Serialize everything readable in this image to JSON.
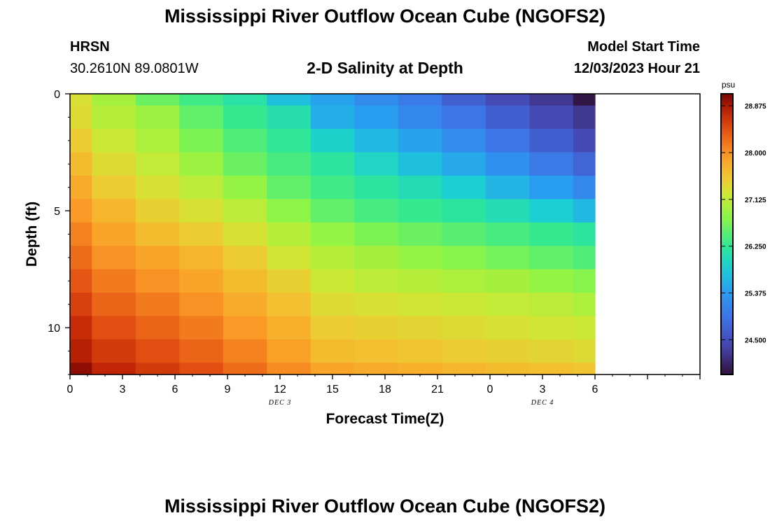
{
  "page": {
    "title_top": "Mississippi River Outflow Ocean Cube (NGOFS2)",
    "title_bottom": "Mississippi River Outflow Ocean Cube (NGOFS2)",
    "station_name": "HRSN",
    "station_coords": "30.2610N  89.0801W",
    "plot_title": "2-D Salinity at Depth",
    "model_start_label": "Model Start Time",
    "model_start_value": "12/03/2023 Hour 21"
  },
  "chart_data": {
    "type": "heatmap",
    "title": "2-D Salinity at Depth",
    "xlabel": "Forecast Time(Z)",
    "ylabel": "Depth (ft)",
    "x_range": [
      0,
      36
    ],
    "y_range": [
      0,
      12
    ],
    "y_inverted": true,
    "x_ticks": [
      0,
      3,
      6,
      9,
      12,
      15,
      18,
      21,
      24,
      27,
      30,
      33,
      36
    ],
    "x_tick_labels": [
      "0",
      "3",
      "6",
      "9",
      "12",
      "15",
      "18",
      "21",
      "0",
      "3",
      "6"
    ],
    "x_tick_labels_at": [
      0,
      3,
      6,
      9,
      12,
      15,
      18,
      21,
      24,
      27,
      30
    ],
    "y_ticks": [
      0,
      5,
      10
    ],
    "y_tick_labels": [
      "0",
      "5",
      "10"
    ],
    "date_labels": [
      {
        "text": "DEC 3",
        "x": 12
      },
      {
        "text": "DEC 4",
        "x": 27
      }
    ],
    "colorbar": {
      "units": "psu",
      "min": 23.85,
      "max": 29.1,
      "ticks": [
        28.875,
        28.0,
        27.125,
        26.25,
        25.375,
        24.5
      ],
      "tick_labels": [
        "28.875",
        "28.000",
        "27.125",
        "26.250",
        "25.375",
        "24.500"
      ]
    },
    "x_edges": [
      0,
      1.25,
      3.75,
      6.25,
      8.75,
      11.25,
      13.75,
      16.25,
      18.75,
      21.25,
      23.75,
      26.25,
      28.75,
      30
    ],
    "y_edges": [
      0,
      0.5,
      1.5,
      2.5,
      3.5,
      4.5,
      5.5,
      6.5,
      7.5,
      8.5,
      9.5,
      10.5,
      11.5,
      12
    ],
    "values": [
      [
        27.3,
        26.95,
        26.6,
        26.35,
        26.15,
        25.7,
        25.45,
        25.2,
        25.0,
        24.7,
        24.45,
        24.25,
        23.9
      ],
      [
        27.35,
        27.05,
        26.9,
        26.55,
        26.3,
        26.1,
        25.55,
        25.4,
        25.15,
        24.95,
        24.7,
        24.45,
        24.25
      ],
      [
        27.5,
        27.2,
        27.0,
        26.7,
        26.45,
        26.25,
        25.9,
        25.65,
        25.45,
        25.2,
        24.95,
        24.7,
        24.45
      ],
      [
        27.65,
        27.35,
        27.15,
        26.9,
        26.6,
        26.4,
        26.2,
        25.95,
        25.7,
        25.5,
        25.25,
        25.0,
        24.75
      ],
      [
        27.8,
        27.5,
        27.3,
        27.1,
        26.85,
        26.55,
        26.35,
        26.2,
        26.05,
        25.85,
        25.6,
        25.4,
        25.15
      ],
      [
        27.95,
        27.7,
        27.45,
        27.3,
        27.1,
        26.8,
        26.55,
        26.4,
        26.3,
        26.2,
        26.05,
        25.85,
        25.65
      ],
      [
        28.1,
        27.85,
        27.65,
        27.5,
        27.3,
        27.05,
        26.85,
        26.7,
        26.6,
        26.5,
        26.4,
        26.3,
        26.2
      ],
      [
        28.25,
        28.0,
        27.85,
        27.7,
        27.5,
        27.25,
        27.05,
        26.95,
        26.85,
        26.75,
        26.65,
        26.55,
        26.45
      ],
      [
        28.4,
        28.15,
        28.0,
        27.85,
        27.65,
        27.45,
        27.2,
        27.1,
        27.05,
        27.0,
        26.95,
        26.85,
        26.75
      ],
      [
        28.55,
        28.3,
        28.15,
        28.0,
        27.8,
        27.6,
        27.35,
        27.3,
        27.25,
        27.2,
        27.15,
        27.1,
        27.0
      ],
      [
        28.7,
        28.45,
        28.3,
        28.15,
        27.95,
        27.75,
        27.5,
        27.45,
        27.4,
        27.35,
        27.3,
        27.25,
        27.2
      ],
      [
        28.8,
        28.6,
        28.45,
        28.3,
        28.1,
        27.9,
        27.65,
        27.6,
        27.55,
        27.5,
        27.45,
        27.4,
        27.35
      ],
      [
        29.0,
        28.75,
        28.6,
        28.45,
        28.25,
        28.05,
        27.85,
        27.8,
        27.75,
        27.7,
        27.65,
        27.6,
        27.55
      ]
    ],
    "grid": false,
    "legend": "right colorbar"
  }
}
